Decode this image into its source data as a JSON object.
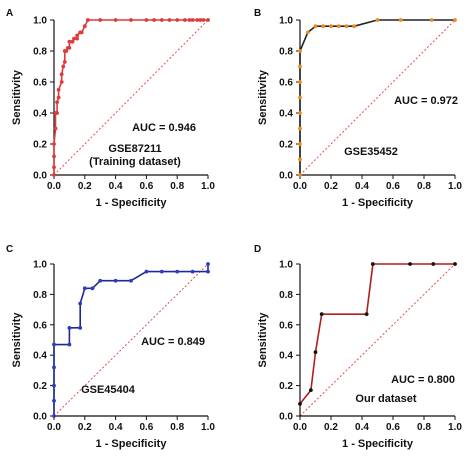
{
  "panels": [
    {
      "letter": "A",
      "auc_label": "AUC = 0.946",
      "dataset_lines": [
        "GSE87211",
        "(Training dataset)"
      ],
      "colors": {
        "line": "#e03a3a",
        "marker": "#e03a3a",
        "ref": "#e05050"
      }
    },
    {
      "letter": "B",
      "auc_label": "AUC = 0.972",
      "dataset_lines": [
        "GSE35452"
      ],
      "colors": {
        "line": "#222222",
        "marker": "#f08a1e",
        "ref": "#e05050"
      }
    },
    {
      "letter": "C",
      "auc_label": "AUC = 0.849",
      "dataset_lines": [
        "GSE45404"
      ],
      "colors": {
        "line": "#1d2a8c",
        "marker": "#2a3cc4",
        "ref": "#e05050"
      }
    },
    {
      "letter": "D",
      "auc_label": "AUC = 0.800",
      "dataset_lines": [
        "Our dataset"
      ],
      "colors": {
        "line": "#b01e1e",
        "marker": "#111111",
        "ref": "#e05050"
      }
    }
  ],
  "chart_data": [
    {
      "type": "line",
      "xlabel": "1 - Specificity",
      "ylabel": "Sensitivity",
      "xlim": [
        0,
        1
      ],
      "ylim": [
        0,
        1
      ],
      "xticks": [
        "0.0",
        "0.2",
        "0.4",
        "0.6",
        "0.8",
        "1.0"
      ],
      "yticks": [
        "0.0",
        "0.2",
        "0.4",
        "0.6",
        "0.8",
        "1.0"
      ],
      "series": [
        {
          "x": [
            0,
            0,
            0,
            0,
            0.01,
            0.01,
            0.02,
            0.02,
            0.03,
            0.03,
            0.05,
            0.05,
            0.06,
            0.07,
            0.07,
            0.08,
            0.09,
            0.1,
            0.1,
            0.12,
            0.13,
            0.15,
            0.15,
            0.17,
            0.18,
            0.2,
            0.22,
            0.3,
            0.4,
            0.5,
            0.6,
            0.65,
            0.7,
            0.75,
            0.8,
            0.85,
            0.88,
            0.9,
            0.93,
            0.95,
            0.97,
            1.0
          ],
          "y": [
            0,
            0.05,
            0.12,
            0.2,
            0.3,
            0.4,
            0.4,
            0.47,
            0.5,
            0.55,
            0.6,
            0.65,
            0.7,
            0.73,
            0.8,
            0.8,
            0.82,
            0.82,
            0.86,
            0.86,
            0.88,
            0.88,
            0.9,
            0.92,
            0.92,
            0.96,
            1.0,
            1.0,
            1.0,
            1.0,
            1.0,
            1.0,
            1.0,
            1.0,
            1.0,
            1.0,
            1.0,
            1.0,
            1.0,
            1.0,
            1.0,
            1.0
          ]
        }
      ],
      "reference_line": [
        [
          0,
          0
        ],
        [
          1,
          1
        ]
      ]
    },
    {
      "type": "line",
      "xlabel": "1 - Specificity",
      "ylabel": "Sensitivity",
      "xlim": [
        0,
        1
      ],
      "ylim": [
        0,
        1
      ],
      "xticks": [
        "0.0",
        "0.2",
        "0.4",
        "0.6",
        "0.8",
        "1.0"
      ],
      "yticks": [
        "0.0",
        "0.2",
        "0.4",
        "0.6",
        "0.8",
        "1.0"
      ],
      "series": [
        {
          "x": [
            0,
            0,
            0,
            0,
            0,
            0,
            0,
            0,
            0,
            0.05,
            0.1,
            0.15,
            0.2,
            0.25,
            0.3,
            0.35,
            0.5,
            0.65,
            0.85,
            1.0
          ],
          "y": [
            0,
            0.1,
            0.2,
            0.3,
            0.4,
            0.5,
            0.6,
            0.7,
            0.8,
            0.92,
            0.96,
            0.96,
            0.96,
            0.96,
            0.96,
            0.96,
            1.0,
            1.0,
            1.0,
            1.0
          ]
        }
      ],
      "reference_line": [
        [
          0,
          0
        ],
        [
          1,
          1
        ]
      ]
    },
    {
      "type": "line",
      "xlabel": "1 - Specificity",
      "ylabel": "Sensitivity",
      "xlim": [
        0,
        1
      ],
      "ylim": [
        0,
        1
      ],
      "xticks": [
        "0.0",
        "0.2",
        "0.4",
        "0.6",
        "0.8",
        "1.0"
      ],
      "yticks": [
        "0.0",
        "0.2",
        "0.4",
        "0.6",
        "0.8",
        "1.0"
      ],
      "series": [
        {
          "x": [
            0,
            0,
            0,
            0,
            0,
            0.1,
            0.1,
            0.17,
            0.17,
            0.2,
            0.25,
            0.3,
            0.4,
            0.5,
            0.6,
            0.7,
            0.8,
            0.9,
            1.0,
            1.0
          ],
          "y": [
            0,
            0.1,
            0.2,
            0.32,
            0.47,
            0.47,
            0.58,
            0.58,
            0.74,
            0.84,
            0.84,
            0.89,
            0.89,
            0.89,
            0.95,
            0.95,
            0.95,
            0.95,
            0.95,
            1.0
          ]
        }
      ],
      "reference_line": [
        [
          0,
          0
        ],
        [
          1,
          1
        ]
      ]
    },
    {
      "type": "line",
      "xlabel": "1 - Specificity",
      "ylabel": "Sensitivity",
      "xlim": [
        0,
        1
      ],
      "ylim": [
        0,
        1
      ],
      "xticks": [
        "0.0",
        "0.2",
        "0.4",
        "0.6",
        "0.8",
        "1.0"
      ],
      "yticks": [
        "0.0",
        "0.2",
        "0.4",
        "0.6",
        "0.8",
        "1.0"
      ],
      "series": [
        {
          "x": [
            0,
            0.07,
            0.1,
            0.14,
            0.43,
            0.47,
            0.71,
            0.86,
            1.0
          ],
          "y": [
            0.08,
            0.17,
            0.42,
            0.67,
            0.67,
            1.0,
            1.0,
            1.0,
            1.0
          ]
        }
      ],
      "reference_line": [
        [
          0,
          0
        ],
        [
          1,
          1
        ]
      ]
    }
  ]
}
